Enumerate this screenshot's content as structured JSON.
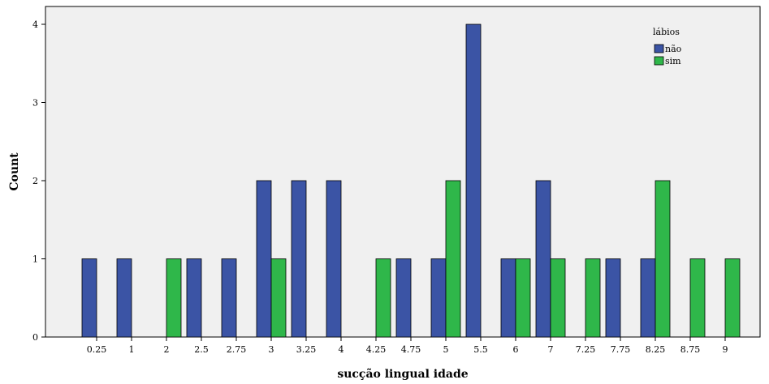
{
  "chart_data": {
    "type": "bar",
    "xlabel": "sucção lingual idade",
    "ylabel": "Count",
    "ylim": [
      0,
      4
    ],
    "yticks": [
      0,
      1,
      2,
      3,
      4
    ],
    "categories": [
      "0.25",
      "1",
      "2",
      "2.5",
      "2.75",
      "3",
      "3.25",
      "4",
      "4.25",
      "4.75",
      "5",
      "5.5",
      "6",
      "7",
      "7.25",
      "7.75",
      "8.25",
      "8.75",
      "9"
    ],
    "legend": {
      "title": "lábios",
      "position": "top-right"
    },
    "series": [
      {
        "name": "não",
        "color": "#3b54a5",
        "values": [
          1,
          1,
          0,
          1,
          1,
          2,
          2,
          2,
          0,
          1,
          1,
          4,
          1,
          2,
          0,
          1,
          1,
          0,
          0
        ]
      },
      {
        "name": "sim",
        "color": "#2fb74a",
        "values": [
          0,
          0,
          1,
          0,
          0,
          1,
          0,
          0,
          1,
          0,
          2,
          0,
          1,
          1,
          1,
          0,
          2,
          1,
          1
        ]
      }
    ],
    "plot_background": "#f0f0f0",
    "grid": false
  }
}
